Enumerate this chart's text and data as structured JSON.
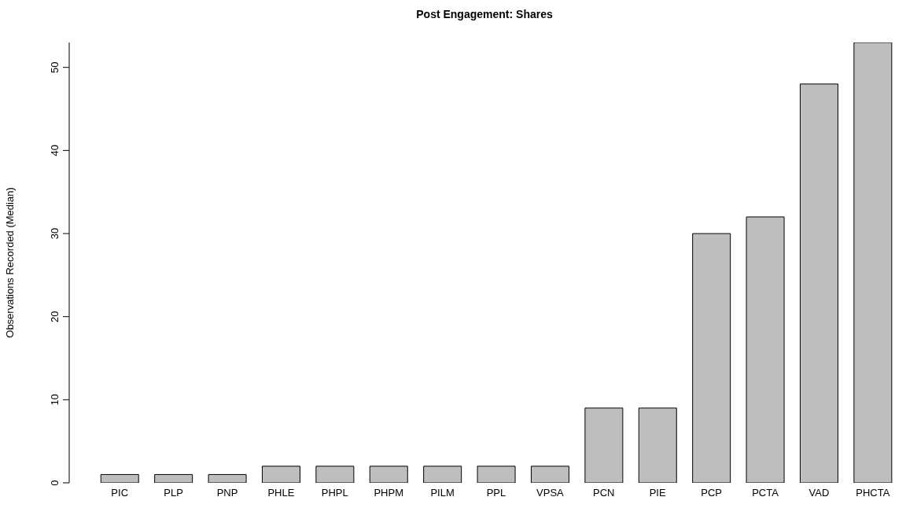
{
  "chart_data": {
    "type": "bar",
    "title": "Post Engagement: Shares",
    "ylabel": "Observations Recorded (Median)",
    "categories": [
      "PIC",
      "PLP",
      "PNP",
      "PHLE",
      "PHPL",
      "PHPM",
      "PILM",
      "PPL",
      "VPSA",
      "PCN",
      "PIE",
      "PCP",
      "PCTA",
      "VAD",
      "PHCTA"
    ],
    "values": [
      1,
      1,
      1,
      2,
      2,
      2,
      2,
      2,
      2,
      9,
      9,
      30,
      32,
      48,
      53
    ],
    "color": "#bebebe",
    "ylim": [
      0,
      53
    ],
    "yticks": [
      0,
      10,
      20,
      30,
      40,
      50
    ],
    "grid": false,
    "legend": false
  }
}
